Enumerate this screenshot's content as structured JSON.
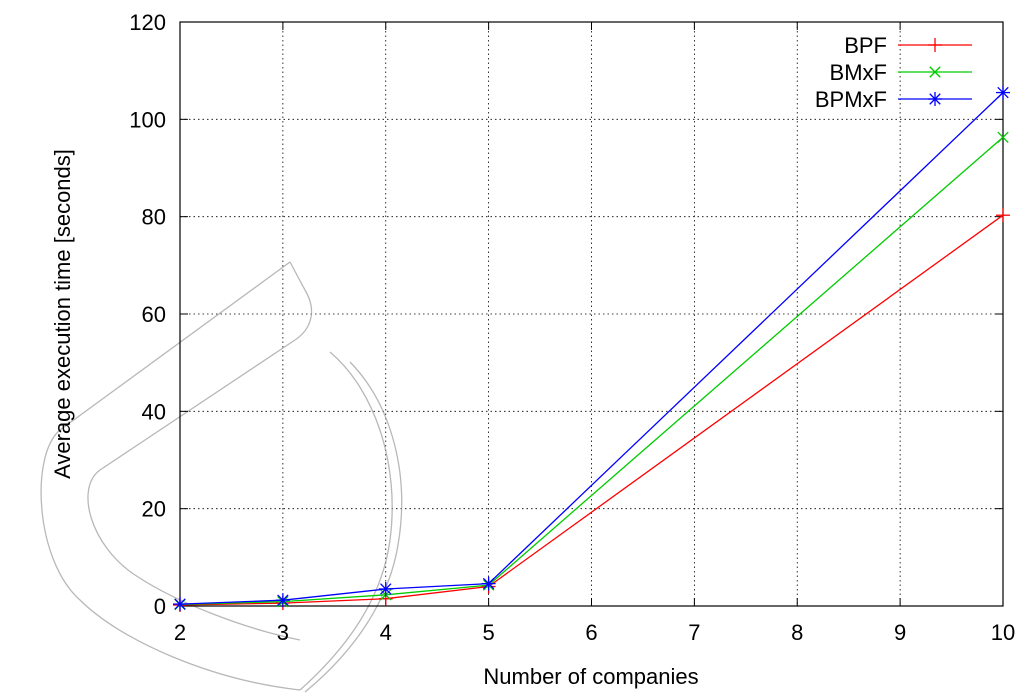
{
  "chart_data": {
    "type": "line",
    "xlabel": "Number of companies",
    "ylabel": "Average execution time [seconds]",
    "xlim": [
      2,
      10
    ],
    "ylim": [
      0,
      120
    ],
    "xticks": [
      "2",
      "3",
      "4",
      "5",
      "6",
      "7",
      "8",
      "9",
      "10"
    ],
    "yticks": [
      "0",
      "20",
      "40",
      "60",
      "80",
      "100",
      "120"
    ],
    "grid": true,
    "legend_position": "top-right",
    "series": [
      {
        "name": "BPF",
        "color": "#ff0000",
        "marker": "plus",
        "points": [
          [
            2,
            0.2
          ],
          [
            3,
            0.6
          ],
          [
            4,
            1.5
          ],
          [
            5,
            4.0
          ],
          [
            10,
            80.3
          ]
        ]
      },
      {
        "name": "BMxF",
        "color": "#00cc00",
        "marker": "x",
        "points": [
          [
            2,
            0.3
          ],
          [
            3,
            0.9
          ],
          [
            4,
            2.3
          ],
          [
            5,
            4.3
          ],
          [
            10,
            96.3
          ]
        ]
      },
      {
        "name": "BPMxF",
        "color": "#0000ff",
        "marker": "star",
        "points": [
          [
            2,
            0.4
          ],
          [
            3,
            1.2
          ],
          [
            4,
            3.5
          ],
          [
            5,
            4.6
          ],
          [
            10,
            105.5
          ]
        ]
      }
    ]
  }
}
